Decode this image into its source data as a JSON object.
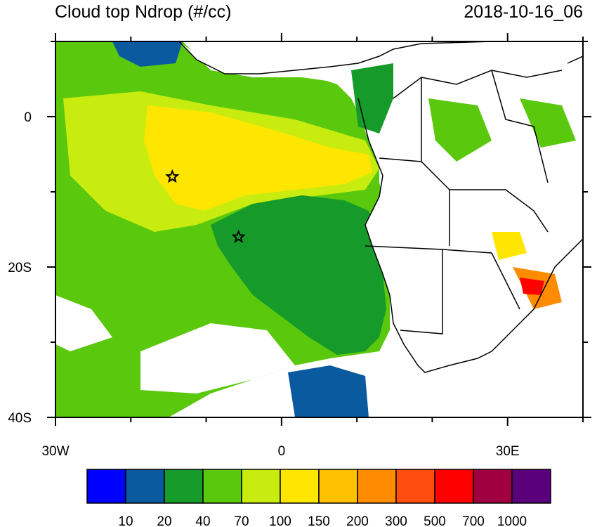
{
  "title_left": "Cloud top Ndrop (#/cc)",
  "title_right": "2018-10-16_06",
  "map": {
    "lon_range": [
      -30,
      40
    ],
    "lat_range": [
      -40,
      10
    ],
    "x_ticks": [
      {
        "lon": -30,
        "label": "30W"
      },
      {
        "lon": 0,
        "label": "0"
      },
      {
        "lon": 30,
        "label": "30E"
      }
    ],
    "y_ticks": [
      {
        "lat": 0,
        "label": "0"
      },
      {
        "lat": -20,
        "label": "20S"
      },
      {
        "lat": -40,
        "label": "40S"
      }
    ],
    "markers": [
      {
        "type": "star",
        "lon": -14.5,
        "lat": -8
      },
      {
        "type": "star",
        "lon": -5.7,
        "lat": -16
      }
    ]
  },
  "colorbar": {
    "colors": [
      "#0000ff",
      "#0a5aa0",
      "#169b2a",
      "#5ac80c",
      "#c8ec10",
      "#ffe600",
      "#ffc000",
      "#ff8c00",
      "#ff4d10",
      "#ff0000",
      "#a00040",
      "#5a007a"
    ],
    "labels": [
      "10",
      "20",
      "40",
      "70",
      "100",
      "150",
      "200",
      "300",
      "500",
      "700",
      "1000"
    ]
  }
}
